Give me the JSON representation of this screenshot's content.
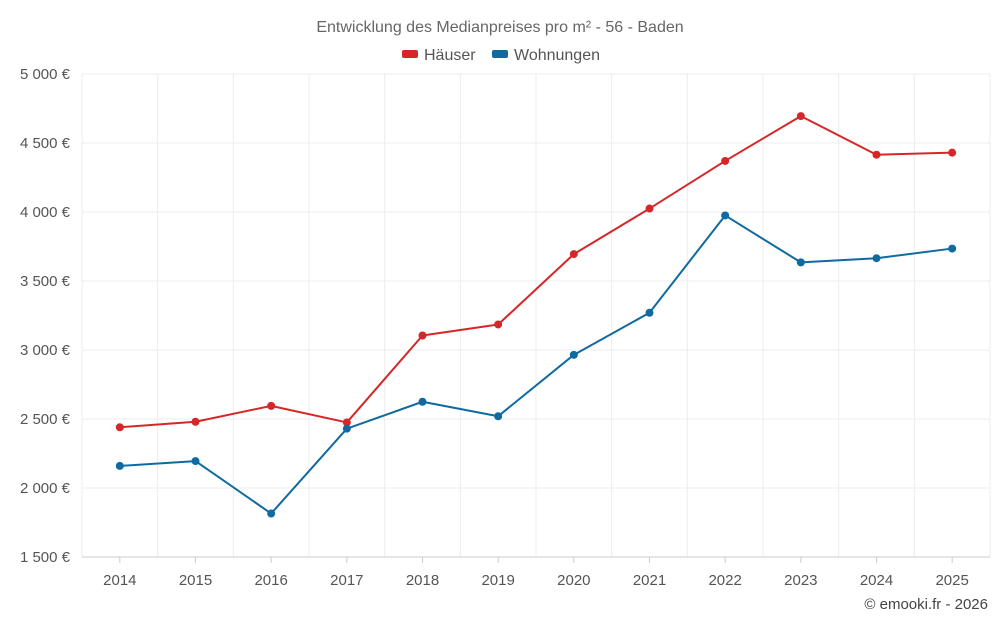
{
  "chart_data": {
    "type": "line",
    "title": "Entwicklung des Medianpreises pro m² - 56 - Baden",
    "categories": [
      "2014",
      "2015",
      "2016",
      "2017",
      "2018",
      "2019",
      "2020",
      "2021",
      "2022",
      "2023",
      "2024",
      "2025"
    ],
    "series": [
      {
        "name": "Häuser",
        "color": "#d62728",
        "values": [
          2440,
          2480,
          2595,
          2475,
          3105,
          3185,
          3695,
          4025,
          4370,
          4695,
          4415,
          4430
        ]
      },
      {
        "name": "Wohnungen",
        "color": "#0e6aa0",
        "values": [
          2160,
          2195,
          1815,
          2430,
          2625,
          2520,
          2965,
          3270,
          3975,
          3635,
          3665,
          3735
        ]
      }
    ],
    "y_ticks": [
      "5 000 €",
      "4 500 €",
      "4 000 €",
      "3 500 €",
      "3 000 €",
      "2 500 €",
      "2 000 €",
      "1 500 €"
    ],
    "y_tick_values": [
      5000,
      4500,
      4000,
      3500,
      3000,
      2500,
      2000,
      1500
    ],
    "ylim": [
      1500,
      5000
    ],
    "xlabel": "",
    "ylabel": "",
    "grid": true,
    "legend_position": "top-center"
  },
  "credit": "© emooki.fr - 2026"
}
